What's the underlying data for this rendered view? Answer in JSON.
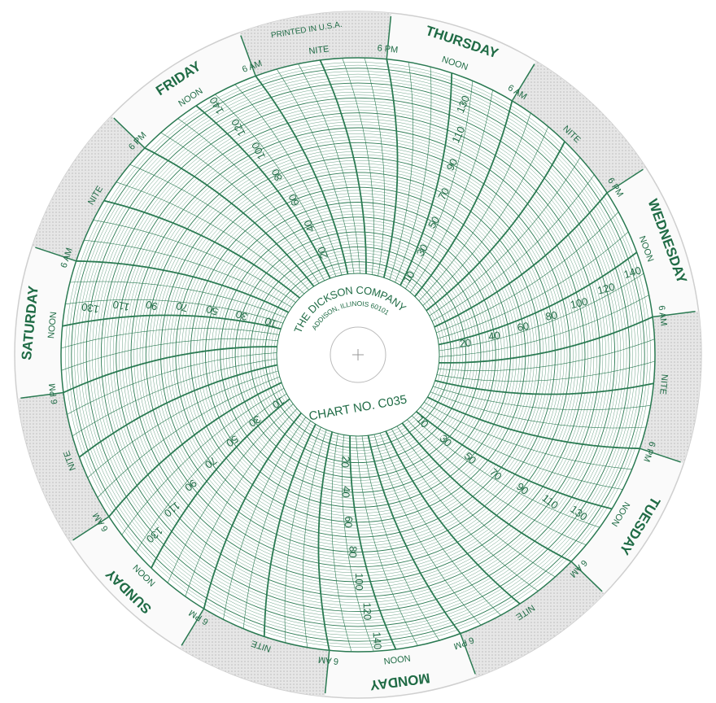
{
  "imprint": "PRINTED IN U.S.A.",
  "days": [
    "THURSDAY",
    "WEDNESDAY",
    "TUESDAY",
    "MONDAY",
    "SUNDAY",
    "SATURDAY",
    "FRIDAY"
  ],
  "times": [
    "NOON",
    "6 AM",
    "NITE",
    "6 PM"
  ],
  "scale_even": [
    20,
    40,
    60,
    80,
    100,
    120,
    140
  ],
  "scale_odd": [
    10,
    30,
    50,
    70,
    90,
    110,
    130
  ],
  "hub": {
    "company": "THE DICKSON COMPANY",
    "address": "ADDISON, ILLINOIS 60101",
    "chart_no": "CHART NO. C035"
  }
}
